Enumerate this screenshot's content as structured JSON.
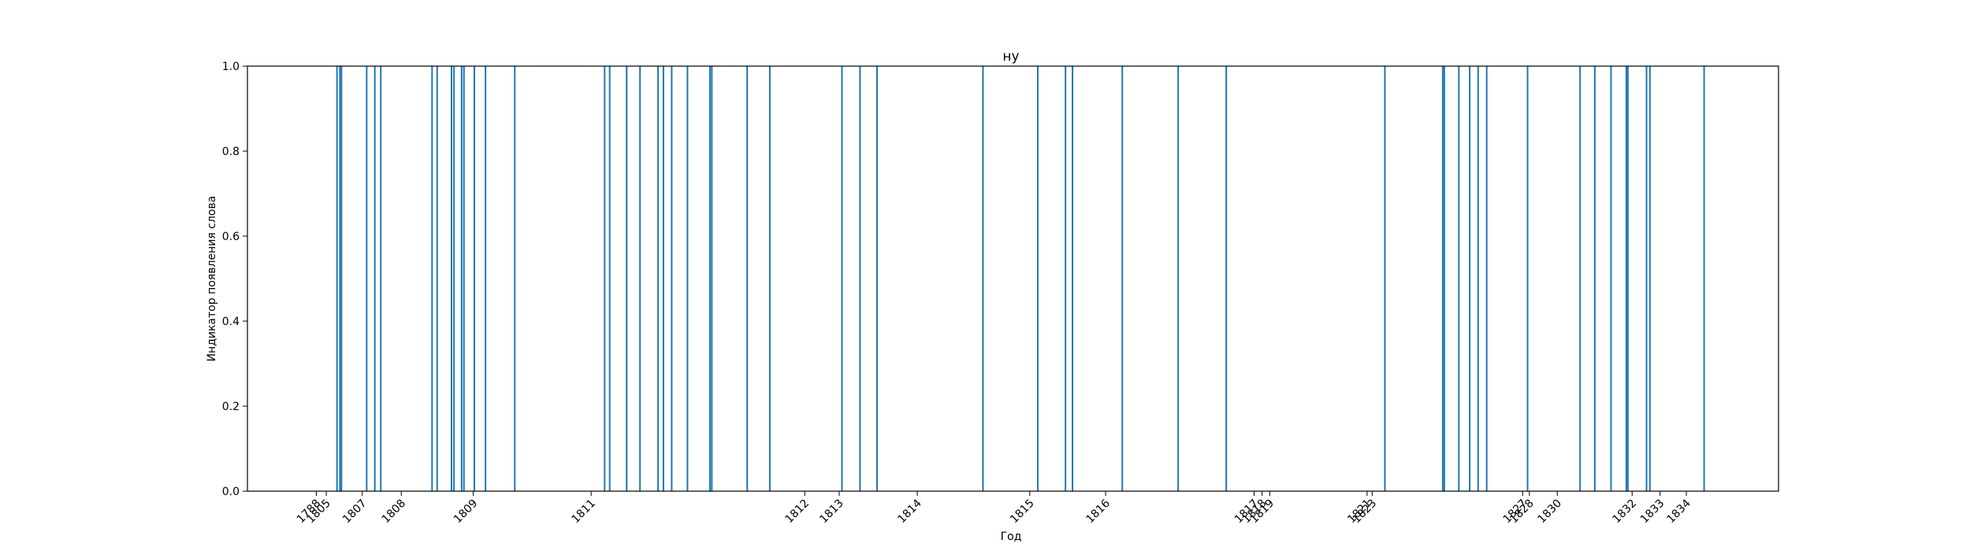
{
  "chart_data": {
    "type": "bar",
    "title": "ну",
    "xlabel": "Год",
    "ylabel": "Индикатор появления слова",
    "ylim": [
      0,
      1
    ],
    "y_ticks": [
      "0.0",
      "0.2",
      "0.4",
      "0.6",
      "0.8",
      "1.0"
    ],
    "grid": false,
    "series_color": "#1f77b4",
    "x_tick_labels": [
      "1788",
      "1805",
      "1807",
      "1808",
      "1809",
      "1811",
      "1812",
      "1813",
      "1814",
      "1815",
      "1816",
      "1817",
      "1818",
      "1819",
      "1821",
      "1823",
      "1827",
      "1828",
      "1830",
      "1832",
      "1833",
      "1834"
    ],
    "event_positions": [
      0.0585,
      0.0604,
      0.0614,
      0.0779,
      0.0832,
      0.0871,
      0.1206,
      0.1239,
      0.1333,
      0.1349,
      0.1399,
      0.1414,
      0.1482,
      0.1555,
      0.1746,
      0.2333,
      0.2366,
      0.2477,
      0.2564,
      0.2682,
      0.2717,
      0.2771,
      0.2874,
      0.3021,
      0.3033,
      0.3264,
      0.3412,
      0.3883,
      0.4001,
      0.4112,
      0.4804,
      0.5162,
      0.5343,
      0.5389,
      0.5714,
      0.6079,
      0.6393,
      0.7429,
      0.7807,
      0.7817,
      0.7912,
      0.7983,
      0.8038,
      0.8094,
      0.8361,
      0.8704,
      0.88,
      0.8906,
      0.9006,
      0.9016,
      0.9138,
      0.916,
      0.9514
    ],
    "values_all": 1
  }
}
